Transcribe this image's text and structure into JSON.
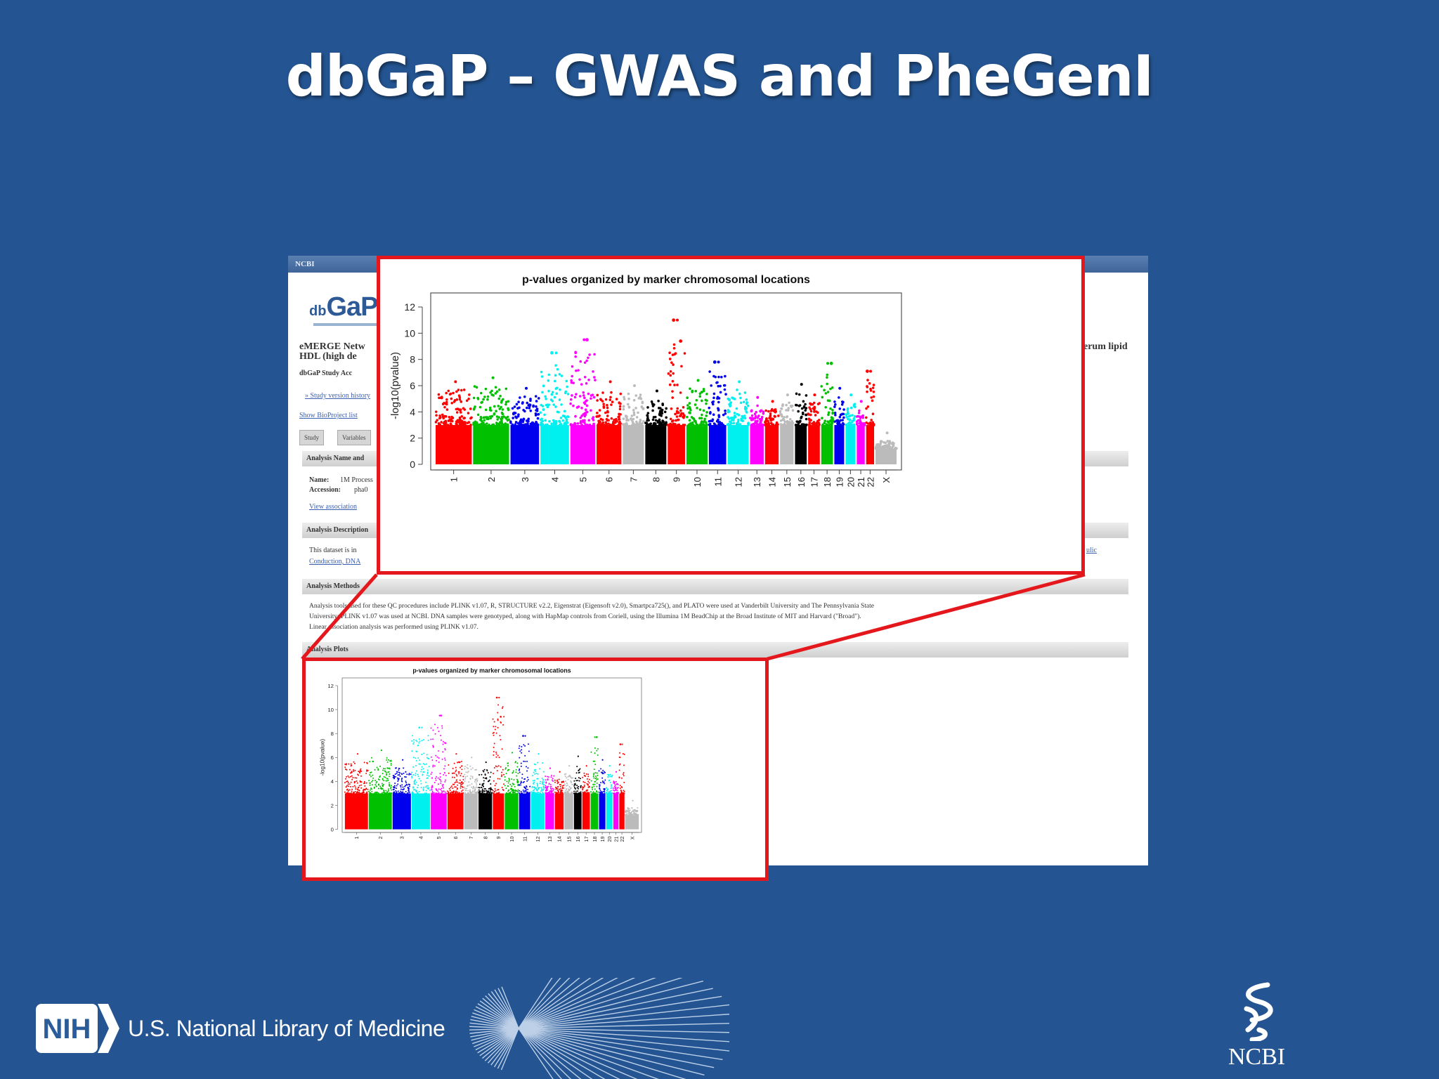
{
  "slide": {
    "title": "dbGaP – GWAS and PheGenI"
  },
  "screenshot": {
    "topbar": "NCBI",
    "logo_db": "db",
    "logo_gap": "GaP",
    "study_title_1": "eMERGE Netw",
    "study_title_2": "HDL (high de",
    "study_accession": "dbGaP Study Acc",
    "study_version_link": "» Study version history",
    "show_subproject": "Show BioProject list",
    "tabs": [
      "Study",
      "Variables"
    ],
    "right_text": "erum lipid",
    "section_analysis_name": "Analysis Name and",
    "name_label": "Name:",
    "name_value": "1M Process",
    "accession_label": "Accession:",
    "accession_value": "pha0",
    "view_association": "View association",
    "section_analysis_description": "Analysis Description",
    "description_text": "This dataset is in",
    "description_link": "Conduction, DNA",
    "section_analysis_methods": "Analysis Methods",
    "methods_text_1": "Analysis tools used for these QC procedures include PLINK v1.07, R, STRUCTURE v2.2, Eigenstrat (Eigensoft v2.0), Smartpca725(), and PLATO were used at Vanderbilt University and The Pennsylvania State",
    "methods_text_2": "University; PLINK v1.07 was used at NCBI. DNA samples were genotyped, along with HapMap controls from Coriell, using the Illumina 1M BeadChip at the Broad Institute of MIT and Harvard (\"Broad\").",
    "methods_text_3": "Linear association analysis was performed using PLINK v1.07.",
    "section_analysis_plots": "Analysis Plots",
    "right_link": "ulic"
  },
  "chart_data": {
    "type": "scatter",
    "title": "p-values organized by marker chromosomal locations",
    "xlabel": "",
    "ylabel": "-log10(pvalue)",
    "ylim": [
      0,
      12
    ],
    "yticks": [
      0,
      2,
      4,
      6,
      8,
      10,
      12
    ],
    "categories": [
      "1",
      "2",
      "3",
      "4",
      "5",
      "6",
      "7",
      "8",
      "9",
      "10",
      "11",
      "12",
      "13",
      "14",
      "15",
      "16",
      "17",
      "18",
      "19",
      "20",
      "21",
      "22",
      "X"
    ],
    "colors": [
      "#ff0000",
      "#00c000",
      "#0000ee",
      "#00f0f0",
      "#ff00ff",
      "#ff0000",
      "#bbbbbb",
      "#000000",
      "#ff0000",
      "#00c000",
      "#0000ee",
      "#00f0f0",
      "#ff00ff",
      "#ff0000",
      "#bbbbbb",
      "#000000",
      "#ff0000",
      "#00c000",
      "#0000ee",
      "#00f0f0",
      "#ff00ff",
      "#ff0000",
      "#bbbbbb"
    ],
    "max_values": [
      6.3,
      6.6,
      5.8,
      8.5,
      9.5,
      6.3,
      6.0,
      5.6,
      11.0,
      6.4,
      7.8,
      6.3,
      5.1,
      4.8,
      5.3,
      6.1,
      5.3,
      7.7,
      5.8,
      5.3,
      4.8,
      7.1,
      2.4
    ],
    "top_hits": [
      {
        "chr": "4",
        "value": 8.5
      },
      {
        "chr": "5",
        "value": 9.5
      },
      {
        "chr": "9",
        "value": 11.0
      },
      {
        "chr": "9",
        "value": 9.4
      },
      {
        "chr": "11",
        "value": 7.8
      },
      {
        "chr": "18",
        "value": 7.7
      },
      {
        "chr": "22",
        "value": 7.1
      }
    ],
    "grid": false,
    "legend": "none"
  },
  "footer": {
    "nih_logo_text": "NIH",
    "nlm_text": "U.S. National Library of Medicine",
    "ncbi_text": "NCBI"
  }
}
